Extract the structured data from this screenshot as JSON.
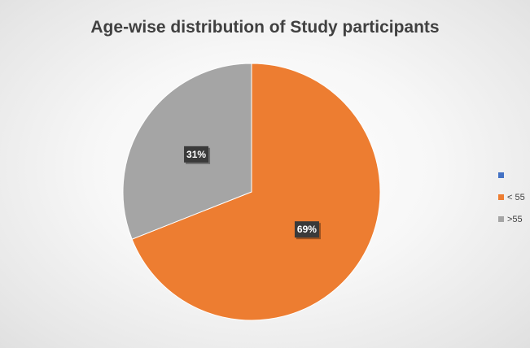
{
  "chart_data": {
    "type": "pie",
    "title": "Age-wise distribution of Study participants",
    "slices": [
      {
        "label": "< 55",
        "value": 69,
        "data_label": "69%",
        "color": "#ED7D31"
      },
      {
        "label": ">55",
        "value": 31,
        "data_label": "31%",
        "color": "#A5A5A5"
      }
    ],
    "legend": {
      "placement": "right",
      "entries": [
        {
          "label": "",
          "color": "#4472C4"
        },
        {
          "label": "< 55",
          "color": "#ED7D31"
        },
        {
          "label": ">55",
          "color": "#A5A5A5"
        }
      ]
    },
    "start_angle": "12 o'clock, clockwise"
  }
}
